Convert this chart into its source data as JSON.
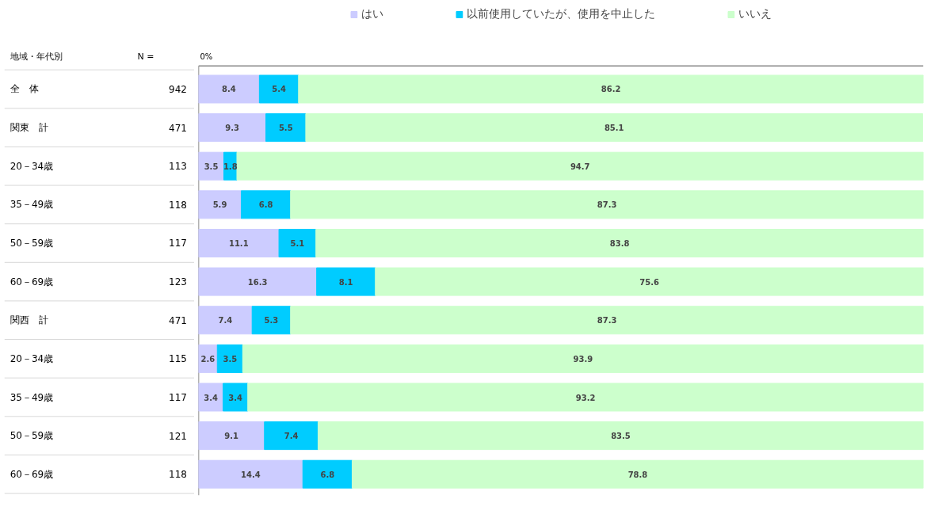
{
  "chart_data": {
    "type": "bar",
    "orientation": "horizontal",
    "stacked": true,
    "ylabel": "地域・年代別",
    "categories": [
      "全　体",
      "関東　計",
      "20－34歳",
      "35－49歳",
      "50－59歳",
      "60－69歳",
      "関西　計",
      "20－34歳",
      "35－49歳",
      "50－59歳",
      "60－69歳"
    ],
    "series": [
      {
        "name": "はい",
        "color": "#ccccff",
        "values": [
          8.4,
          9.3,
          3.5,
          5.9,
          11.1,
          16.3,
          7.4,
          2.6,
          3.4,
          9.1,
          14.4
        ]
      },
      {
        "name": "以前使用していたが、使用を中止した",
        "color": "#00ccff",
        "values": [
          5.4,
          5.5,
          1.8,
          6.8,
          5.1,
          8.1,
          5.3,
          3.5,
          3.4,
          7.4,
          6.8
        ]
      },
      {
        "name": "いいえ",
        "color": "#ccffcc",
        "values": [
          86.2,
          85.1,
          94.7,
          87.3,
          83.8,
          75.6,
          87.3,
          93.9,
          93.2,
          83.5,
          78.8
        ]
      }
    ],
    "xlim": [
      0,
      100
    ],
    "data_labels": true,
    "legend": "top",
    "grid": false,
    "annotations": [
      "0%",
      "N =",
      "942",
      "471",
      "113",
      "118",
      "117",
      "123",
      "471",
      "115",
      "117",
      "121",
      "118"
    ]
  }
}
